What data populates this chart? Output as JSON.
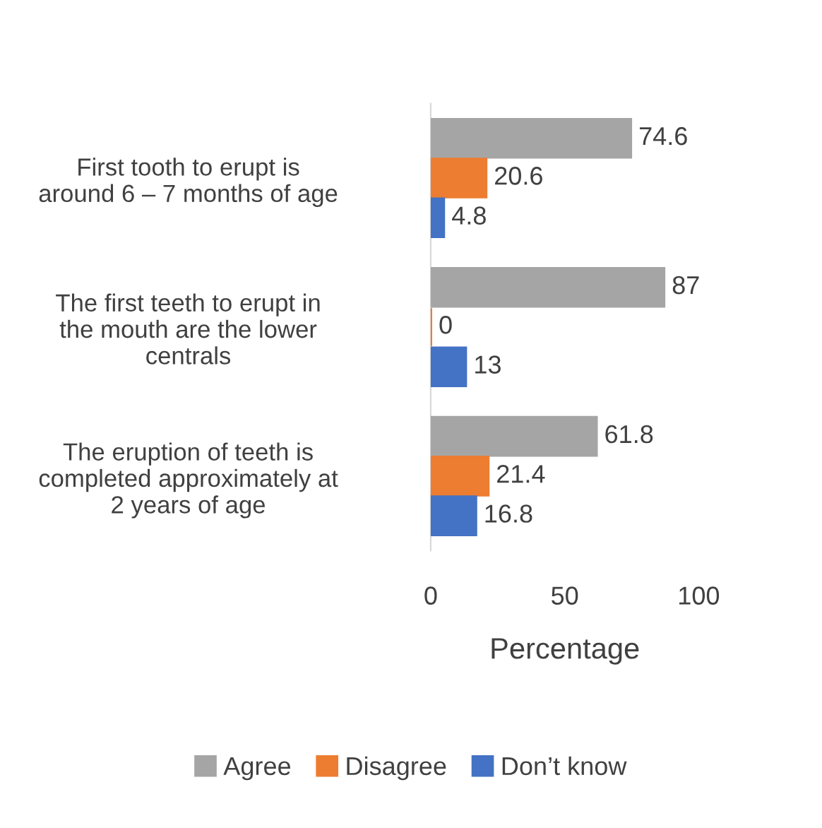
{
  "chart_data": {
    "type": "bar",
    "orientation": "horizontal",
    "categories": [
      "First tooth to erupt is\naround 6 – 7 months of age",
      "The first teeth to erupt in\nthe mouth are the lower\ncentrals",
      "The eruption of teeth is\ncompleted approximately at\n2 years of age"
    ],
    "series": [
      {
        "name": "Agree",
        "color": "#a5a5a5",
        "values": [
          74.6,
          87,
          61.8
        ]
      },
      {
        "name": "Disagree",
        "color": "#ed7d31",
        "values": [
          20.6,
          0,
          21.4
        ]
      },
      {
        "name": "Don’t know",
        "color": "#4472c4",
        "values": [
          4.8,
          13,
          16.8
        ]
      }
    ],
    "xlim": [
      0,
      100
    ],
    "xticks": [
      0,
      50,
      100
    ],
    "xlabel": "Percentage",
    "data_labels": true,
    "grid": false,
    "legend": "bottom"
  }
}
